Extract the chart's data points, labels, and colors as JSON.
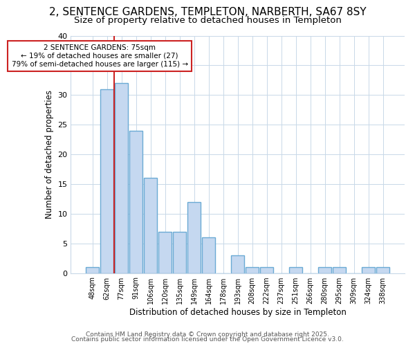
{
  "title_line1": "2, SENTENCE GARDENS, TEMPLETON, NARBERTH, SA67 8SY",
  "title_line2": "Size of property relative to detached houses in Templeton",
  "xlabel": "Distribution of detached houses by size in Templeton",
  "ylabel": "Number of detached properties",
  "categories": [
    "48sqm",
    "62sqm",
    "77sqm",
    "91sqm",
    "106sqm",
    "120sqm",
    "135sqm",
    "149sqm",
    "164sqm",
    "178sqm",
    "193sqm",
    "208sqm",
    "222sqm",
    "237sqm",
    "251sqm",
    "266sqm",
    "280sqm",
    "295sqm",
    "309sqm",
    "324sqm",
    "338sqm"
  ],
  "values": [
    1,
    31,
    32,
    24,
    16,
    7,
    7,
    12,
    6,
    0,
    3,
    1,
    1,
    0,
    1,
    0,
    1,
    1,
    0,
    1,
    1
  ],
  "bar_color": "#c5d8f0",
  "bar_edgecolor": "#6aaad4",
  "bar_linewidth": 1.0,
  "vline_x_index": 1.5,
  "vline_color": "#cc2222",
  "annotation_text": "2 SENTENCE GARDENS: 75sqm\n← 19% of detached houses are smaller (27)\n79% of semi-detached houses are larger (115) →",
  "annotation_box_edgecolor": "#cc2222",
  "annotation_box_facecolor": "#ffffff",
  "annotation_fontsize": 7.5,
  "ylim": [
    0,
    40
  ],
  "yticks": [
    0,
    5,
    10,
    15,
    20,
    25,
    30,
    35,
    40
  ],
  "background_color": "#ffffff",
  "plot_bg_color": "#ffffff",
  "title_fontsize": 11,
  "subtitle_fontsize": 9.5,
  "footer_line1": "Contains HM Land Registry data © Crown copyright and database right 2025.",
  "footer_line2": "Contains public sector information licensed under the Open Government Licence v3.0.",
  "footer_fontsize": 6.5
}
